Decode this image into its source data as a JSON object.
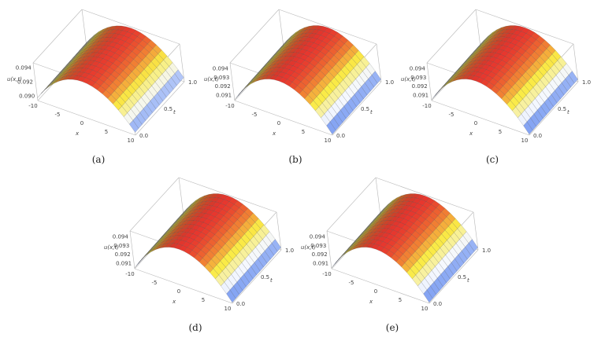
{
  "chart_data": [
    {
      "type": "surface",
      "caption": "(a)",
      "zlabel": "u(x,t)",
      "xlabel": "x",
      "tlabel": "t",
      "x_ticks": [
        "-10",
        "-5",
        "0",
        "5",
        "10"
      ],
      "t_ticks": [
        "0.0",
        "0.5",
        "1.0"
      ],
      "z_ticks": [
        "0.090",
        "0.092",
        "0.094"
      ],
      "z_tick_values": [
        0.09,
        0.092,
        0.094
      ],
      "xlim": [
        -10,
        10
      ],
      "tlim": [
        0,
        1
      ],
      "zlim": [
        0.0893,
        0.0947
      ],
      "peak": 0.0945,
      "edge": 0.0897
    },
    {
      "type": "surface",
      "caption": "(b)",
      "zlabel": "u(x,t)",
      "xlabel": "x",
      "tlabel": "t",
      "x_ticks": [
        "-10",
        "-5",
        "0",
        "5",
        "10"
      ],
      "t_ticks": [
        "0.0",
        "0.5",
        "1.0"
      ],
      "z_ticks": [
        "0.091",
        "0.092",
        "0.093",
        "0.094"
      ],
      "z_tick_values": [
        0.091,
        0.092,
        0.093,
        0.094
      ],
      "xlim": [
        -10,
        10
      ],
      "tlim": [
        0,
        1
      ],
      "zlim": [
        0.0904,
        0.0946
      ],
      "peak": 0.0945,
      "edge": 0.0905
    },
    {
      "type": "surface",
      "caption": "(c)",
      "zlabel": "u(x,t)",
      "xlabel": "x",
      "tlabel": "t",
      "x_ticks": [
        "-10",
        "-5",
        "0",
        "5",
        "10"
      ],
      "t_ticks": [
        "0.0",
        "0.5",
        "1.0"
      ],
      "z_ticks": [
        "0.091",
        "0.092",
        "0.093",
        "0.094"
      ],
      "z_tick_values": [
        0.091,
        0.092,
        0.093,
        0.094
      ],
      "xlim": [
        -10,
        10
      ],
      "tlim": [
        0,
        1
      ],
      "zlim": [
        0.0904,
        0.0946
      ],
      "peak": 0.0945,
      "edge": 0.0905
    },
    {
      "type": "surface",
      "caption": "(d)",
      "zlabel": "u(x,t)",
      "xlabel": "x",
      "tlabel": "t",
      "x_ticks": [
        "-10",
        "-5",
        "0",
        "5",
        "10"
      ],
      "t_ticks": [
        "0.0",
        "0.5",
        "1.0"
      ],
      "z_ticks": [
        "0.091",
        "0.092",
        "0.093",
        "0.094"
      ],
      "z_tick_values": [
        0.091,
        0.092,
        0.093,
        0.094
      ],
      "xlim": [
        -10,
        10
      ],
      "tlim": [
        0,
        1
      ],
      "zlim": [
        0.0904,
        0.0946
      ],
      "peak": 0.0945,
      "edge": 0.0905
    },
    {
      "type": "surface",
      "caption": "(e)",
      "zlabel": "u(x,t)",
      "xlabel": "x",
      "tlabel": "t",
      "x_ticks": [
        "-10",
        "-5",
        "0",
        "5",
        "10"
      ],
      "t_ticks": [
        "0.0",
        "0.5",
        "1.0"
      ],
      "z_ticks": [
        "0.091",
        "0.092",
        "0.093",
        "0.094"
      ],
      "z_tick_values": [
        0.091,
        0.092,
        0.093,
        0.094
      ],
      "xlim": [
        -10,
        10
      ],
      "tlim": [
        0,
        1
      ],
      "zlim": [
        0.0904,
        0.0946
      ],
      "peak": 0.0945,
      "edge": 0.0905
    }
  ]
}
